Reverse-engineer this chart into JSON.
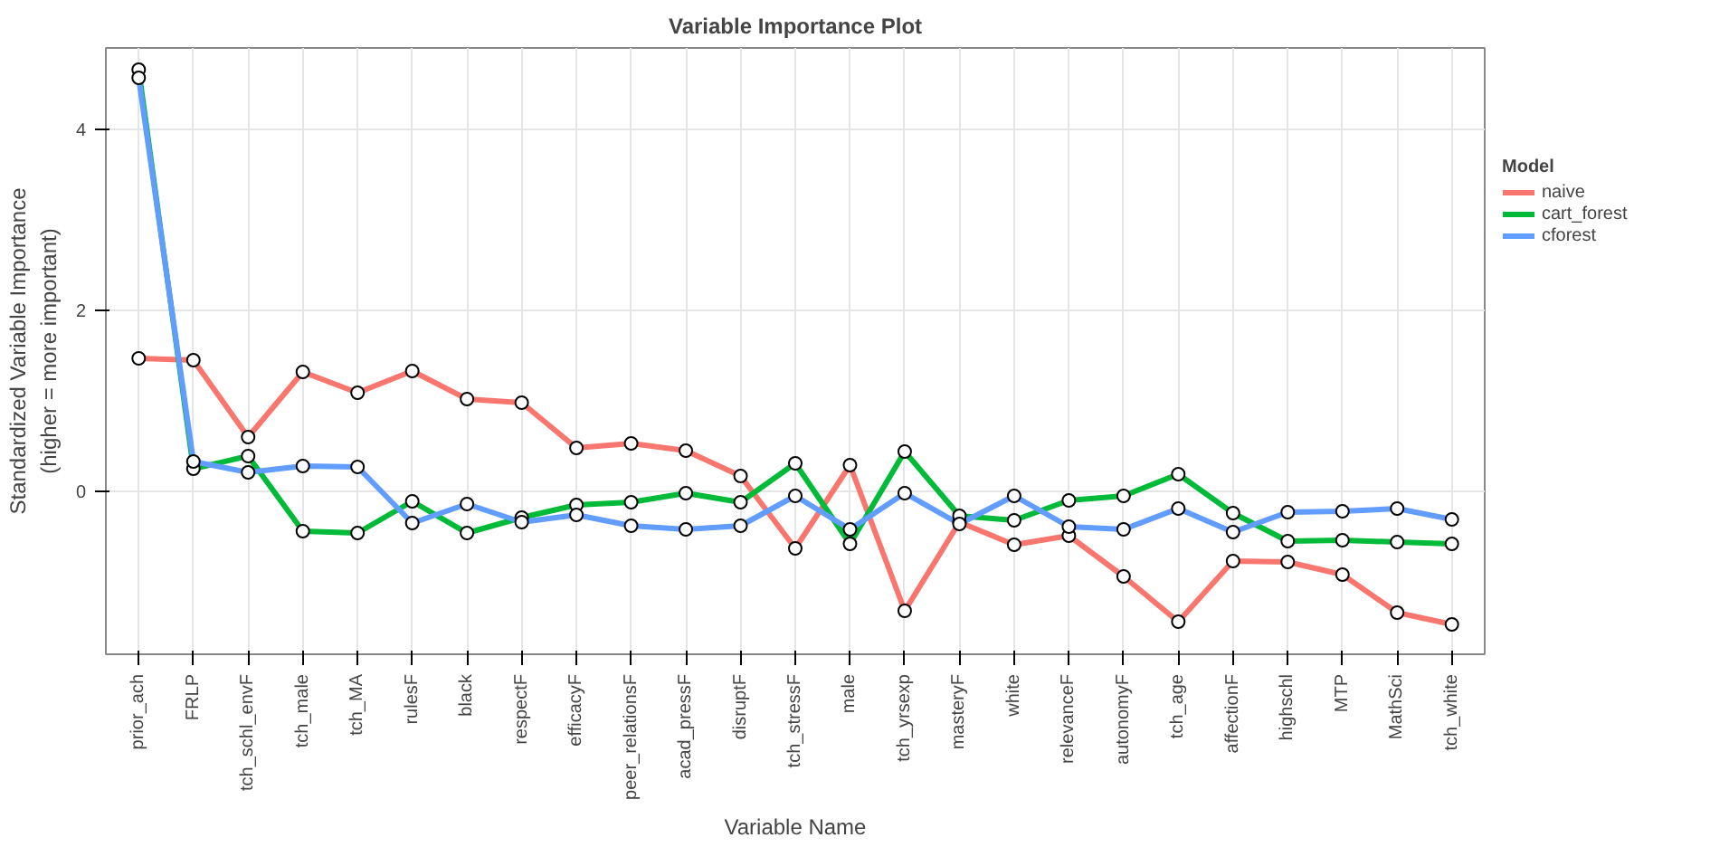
{
  "chart_data": {
    "type": "line",
    "title": "Variable Importance Plot",
    "xlabel": "Variable Name",
    "ylabel": "Standardized Variable Importance\n(higher = more important)",
    "legend_title": "Model",
    "legend": "right",
    "grid": true,
    "marker": "circle",
    "line_style": "solid",
    "categories": [
      "prior_ach",
      "FRLP",
      "tch_schl_envF",
      "tch_male",
      "tch_MA",
      "rulesF",
      "black",
      "respectF",
      "efficacyF",
      "peer_relationsF",
      "acad_pressF",
      "disruptF",
      "tch_stressF",
      "male",
      "tch_yrsexp",
      "masteryF",
      "white",
      "relevanceF",
      "autonomyF",
      "tch_age",
      "affectionF",
      "highschl",
      "MTP",
      "MathSci",
      "tch_white"
    ],
    "ylim": [
      -1.8,
      4.9
    ],
    "yticks": [
      0,
      2,
      4
    ],
    "series": [
      {
        "name": "naive",
        "color": "#f8766d",
        "values": [
          1.47,
          1.45,
          0.6,
          1.32,
          1.09,
          1.33,
          1.02,
          0.98,
          0.48,
          0.53,
          0.45,
          0.17,
          -0.63,
          0.29,
          -1.32,
          -0.34,
          -0.59,
          -0.49,
          -0.94,
          -1.44,
          -0.77,
          -0.78,
          -0.92,
          -1.34,
          -1.47
        ]
      },
      {
        "name": "cart_forest",
        "color": "#00ba38",
        "values": [
          4.66,
          0.25,
          0.39,
          -0.44,
          -0.46,
          -0.11,
          -0.46,
          -0.29,
          -0.15,
          -0.12,
          -0.02,
          -0.12,
          0.31,
          -0.58,
          0.44,
          -0.27,
          -0.32,
          -0.1,
          -0.05,
          0.19,
          -0.24,
          -0.55,
          -0.54,
          -0.56,
          -0.58
        ]
      },
      {
        "name": "cforest",
        "color": "#619cff",
        "values": [
          4.57,
          0.33,
          0.21,
          0.28,
          0.27,
          -0.35,
          -0.14,
          -0.34,
          -0.26,
          -0.38,
          -0.42,
          -0.38,
          -0.05,
          -0.42,
          -0.02,
          -0.36,
          -0.05,
          -0.39,
          -0.42,
          -0.19,
          -0.45,
          -0.23,
          -0.22,
          -0.19,
          -0.31
        ]
      }
    ]
  }
}
